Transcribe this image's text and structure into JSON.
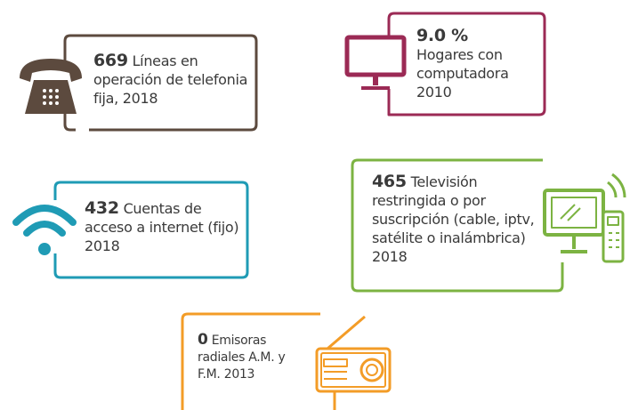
{
  "items": [
    {
      "value": "669",
      "text": "Líneas en operación de telefonia fija, 2018"
    },
    {
      "value": "9.0 %",
      "text": "Hogares con computadora 2010"
    },
    {
      "value": "432",
      "text": "Cuentas de acceso a internet (fijo) 2018"
    },
    {
      "value": "465",
      "text": "Televisión restringida o por suscripción (cable, iptv, satélite o inalámbrica) 2018"
    },
    {
      "value": "0",
      "text": "Emisoras radiales A.M. y F.M. 2013"
    }
  ]
}
